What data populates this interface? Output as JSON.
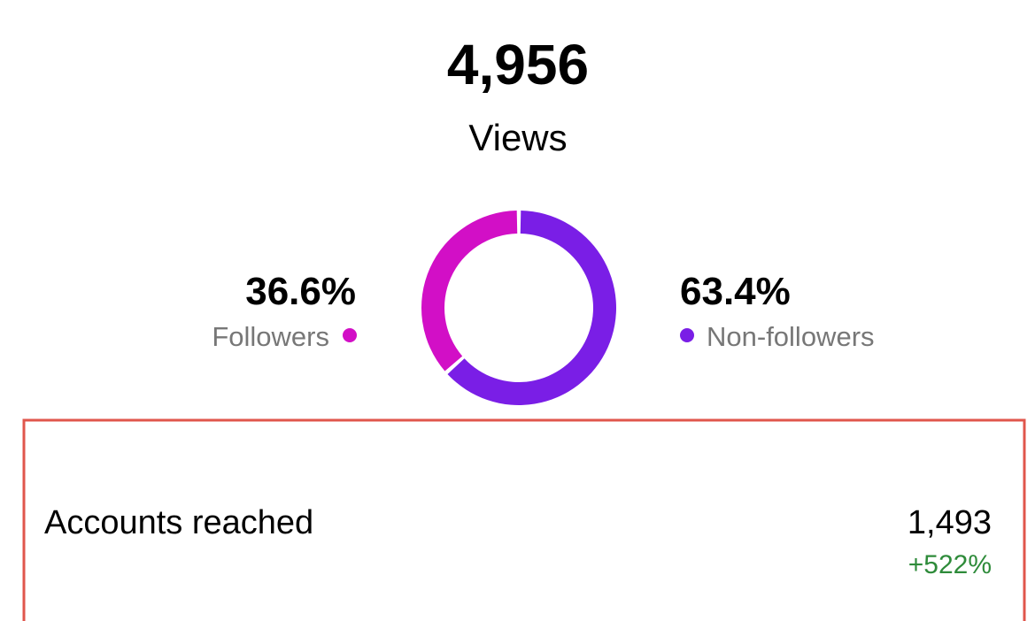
{
  "header": {
    "value": "4,956",
    "label": "Views"
  },
  "chart_data": {
    "type": "donut",
    "categories": [
      "Followers",
      "Non-followers"
    ],
    "values": [
      36.6,
      63.4
    ],
    "value_labels": [
      "36.6%",
      "63.4%"
    ],
    "colors": [
      "#d20fc6",
      "#7a1ee6"
    ]
  },
  "metric": {
    "label": "Accounts reached",
    "value": "1,493",
    "change": "+522%"
  }
}
